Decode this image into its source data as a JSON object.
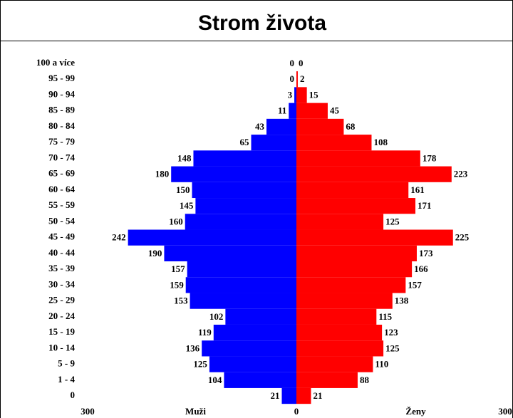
{
  "chart_data": {
    "type": "pyramid",
    "title": "Strom života",
    "categories": [
      "100 a více",
      "95 - 99",
      "90 - 94",
      "85 - 89",
      "80 - 84",
      "75 - 79",
      "70 - 74",
      "65 - 69",
      "60 - 64",
      "55 - 59",
      "50 - 54",
      "45 - 49",
      "40 - 44",
      "35 - 39",
      "30 - 34",
      "25 - 29",
      "20 - 24",
      "15 - 19",
      "10 - 14",
      "5 - 9",
      "1 - 4",
      "0"
    ],
    "series": [
      {
        "name": "Muži",
        "color": "#0000ff",
        "side": "left",
        "values": [
          0,
          0,
          3,
          11,
          43,
          65,
          148,
          180,
          150,
          145,
          160,
          242,
          190,
          157,
          159,
          153,
          102,
          119,
          136,
          125,
          104,
          21
        ]
      },
      {
        "name": "Ženy",
        "color": "#ff0000",
        "side": "right",
        "values": [
          0,
          2,
          15,
          45,
          68,
          108,
          178,
          223,
          161,
          171,
          125,
          225,
          173,
          166,
          157,
          138,
          115,
          123,
          125,
          110,
          88,
          21
        ]
      }
    ],
    "xlim": [
      -300,
      300
    ],
    "xticks": [
      {
        "value": -300,
        "label": "300"
      },
      0,
      300
    ]
  }
}
